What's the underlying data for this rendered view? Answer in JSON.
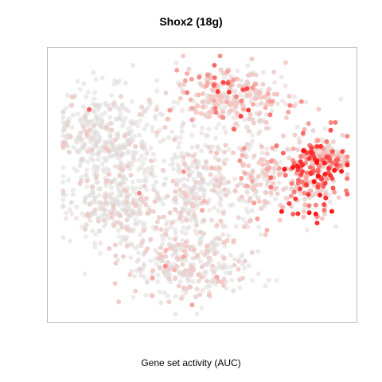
{
  "chart_data": {
    "type": "scatter",
    "title": "Shox2 (18g)",
    "xlabel": "Gene set activity (AUC)",
    "ylabel": "",
    "grid": false,
    "legend": "none",
    "colors": {
      "low": "#dcdcdc",
      "mid": "#f7c3bd",
      "high": "#ff0000"
    },
    "value_range": [
      0,
      1
    ],
    "clusters": [
      {
        "name": "top-right",
        "cx": 0.6,
        "cy": 0.82,
        "sx": 0.1,
        "sy": 0.06,
        "n": 320,
        "activity": 0.42
      },
      {
        "name": "far-right",
        "cx": 0.86,
        "cy": 0.55,
        "sx": 0.05,
        "sy": 0.08,
        "n": 260,
        "activity": 0.72
      },
      {
        "name": "right-tip",
        "cx": 0.9,
        "cy": 0.6,
        "sx": 0.05,
        "sy": 0.02,
        "n": 70,
        "activity": 0.55
      },
      {
        "name": "left-upper",
        "cx": 0.2,
        "cy": 0.68,
        "sx": 0.09,
        "sy": 0.08,
        "n": 380,
        "activity": 0.08
      },
      {
        "name": "left-lower",
        "cx": 0.22,
        "cy": 0.43,
        "sx": 0.08,
        "sy": 0.07,
        "n": 300,
        "activity": 0.1
      },
      {
        "name": "center",
        "cx": 0.48,
        "cy": 0.48,
        "sx": 0.08,
        "sy": 0.1,
        "n": 300,
        "activity": 0.15
      },
      {
        "name": "bottom",
        "cx": 0.45,
        "cy": 0.2,
        "sx": 0.1,
        "sy": 0.06,
        "n": 300,
        "activity": 0.22
      },
      {
        "name": "mid-right",
        "cx": 0.68,
        "cy": 0.52,
        "sx": 0.05,
        "sy": 0.08,
        "n": 150,
        "activity": 0.32
      }
    ]
  }
}
